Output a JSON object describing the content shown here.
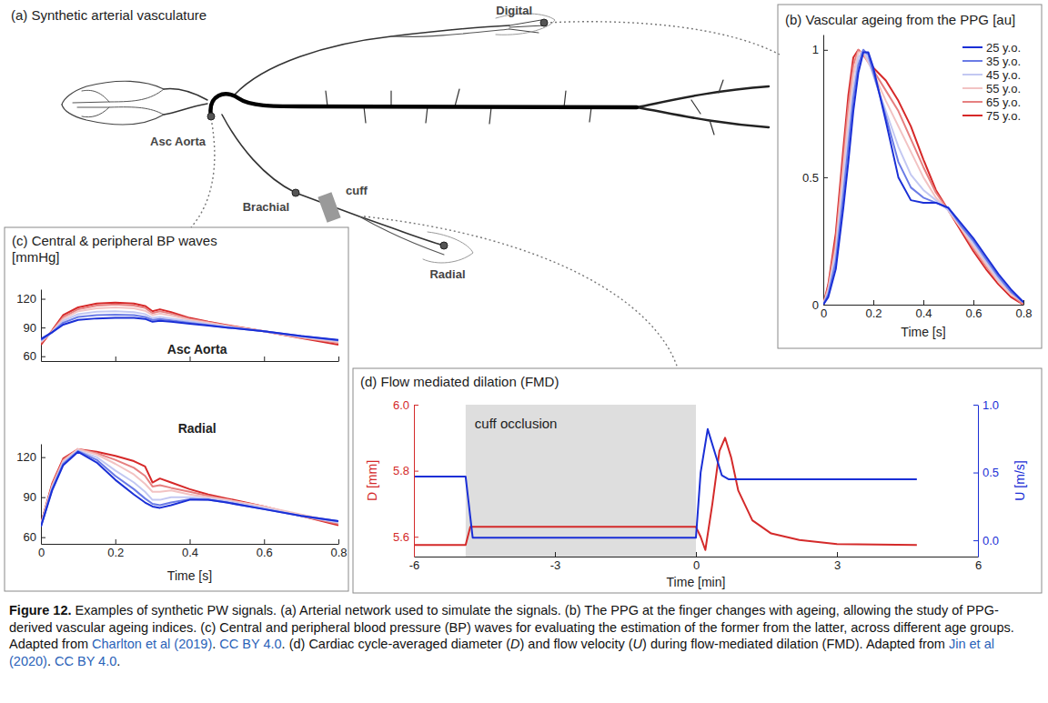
{
  "diagram": {
    "title": "(a) Synthetic arterial vasculature",
    "sites": [
      "Digital",
      "Asc Aorta",
      "Brachial",
      "Radial"
    ],
    "cuff": "cuff"
  },
  "chart_data": [
    {
      "type": "line",
      "title": "(b) Vascular ageing from the PPG [au]",
      "xlabel": "Time [s]",
      "x": [
        0,
        0.02,
        0.05,
        0.08,
        0.1,
        0.12,
        0.14,
        0.16,
        0.18,
        0.2,
        0.25,
        0.3,
        0.35,
        0.4,
        0.45,
        0.5,
        0.55,
        0.6,
        0.65,
        0.7,
        0.75,
        0.8
      ],
      "xlim": [
        0,
        0.8
      ],
      "xticks": [
        0,
        0.2,
        0.4,
        0.6,
        0.8
      ],
      "ylim": [
        0,
        1.06
      ],
      "yticks": [
        0,
        0.5,
        1
      ],
      "legend": "top-right",
      "series": [
        {
          "name": "25 y.o.",
          "color": "#1a2fd6",
          "values": [
            0,
            0.03,
            0.14,
            0.38,
            0.56,
            0.76,
            0.91,
            0.99,
            0.99,
            0.93,
            0.72,
            0.5,
            0.41,
            0.4,
            0.4,
            0.38,
            0.32,
            0.26,
            0.19,
            0.12,
            0.06,
            0.01
          ]
        },
        {
          "name": "35 y.o.",
          "color": "#6a7be6",
          "values": [
            0,
            0.04,
            0.17,
            0.43,
            0.62,
            0.81,
            0.94,
            1,
            0.98,
            0.91,
            0.74,
            0.56,
            0.46,
            0.42,
            0.4,
            0.38,
            0.31,
            0.25,
            0.18,
            0.11,
            0.05,
            0.01
          ]
        },
        {
          "name": "45 y.o.",
          "color": "#c3c8f2",
          "values": [
            0,
            0.05,
            0.2,
            0.48,
            0.67,
            0.85,
            0.97,
            1,
            0.96,
            0.9,
            0.76,
            0.62,
            0.51,
            0.45,
            0.41,
            0.37,
            0.31,
            0.24,
            0.17,
            0.1,
            0.05,
            0.01
          ]
        },
        {
          "name": "55 y.o.",
          "color": "#f2c3c3",
          "values": [
            0,
            0.06,
            0.22,
            0.53,
            0.73,
            0.9,
            0.99,
            0.99,
            0.95,
            0.91,
            0.8,
            0.7,
            0.6,
            0.5,
            0.42,
            0.37,
            0.3,
            0.23,
            0.16,
            0.09,
            0.04,
            0.01
          ]
        },
        {
          "name": "65 y.o.",
          "color": "#e68080",
          "values": [
            0,
            0.07,
            0.25,
            0.57,
            0.78,
            0.94,
            1,
            0.98,
            0.95,
            0.92,
            0.84,
            0.76,
            0.65,
            0.54,
            0.44,
            0.37,
            0.3,
            0.22,
            0.15,
            0.09,
            0.04,
            0
          ]
        },
        {
          "name": "75 y.o.",
          "color": "#d62828",
          "values": [
            0,
            0.08,
            0.28,
            0.61,
            0.82,
            0.97,
            1,
            0.98,
            0.96,
            0.93,
            0.88,
            0.8,
            0.7,
            0.57,
            0.45,
            0.37,
            0.29,
            0.21,
            0.14,
            0.08,
            0.03,
            0
          ]
        }
      ]
    },
    {
      "type": "line",
      "title": "(c) Central & peripheral BP waves [mmHg]",
      "annotations": [
        {
          "text": "Asc Aorta"
        }
      ],
      "tick_labels": "y",
      "x": [
        0,
        0.03,
        0.06,
        0.1,
        0.15,
        0.2,
        0.25,
        0.28,
        0.3,
        0.32,
        0.35,
        0.4,
        0.45,
        0.5,
        0.6,
        0.7,
        0.8
      ],
      "xlim": [
        0,
        0.8
      ],
      "xticks": [
        0,
        0.2,
        0.4,
        0.6,
        0.8
      ],
      "ylim": [
        55,
        130
      ],
      "yticks": [
        60,
        90,
        120
      ],
      "series": [
        {
          "color": "#1a2fd6",
          "values": [
            78,
            85,
            93,
            98,
            99.5,
            100,
            100,
            99,
            96,
            97,
            96,
            94,
            92,
            90,
            86,
            81,
            77
          ]
        },
        {
          "color": "#6a7be6",
          "values": [
            77,
            85,
            95,
            101,
            103,
            103.5,
            103,
            101,
            98,
            99,
            97.5,
            95,
            92.5,
            90,
            86,
            81,
            76.5
          ]
        },
        {
          "color": "#c3c8f2",
          "values": [
            76,
            85,
            97,
            104,
            106.5,
            107,
            106,
            104,
            100,
            101,
            99.5,
            96.5,
            93.5,
            91,
            86,
            80.5,
            76
          ]
        },
        {
          "color": "#f2c3c3",
          "values": [
            75,
            86,
            99,
            107,
            110,
            111,
            110,
            107.5,
            103,
            104.5,
            102.5,
            98,
            95,
            91.5,
            86,
            80,
            75
          ]
        },
        {
          "color": "#e68080",
          "values": [
            74,
            86,
            101,
            109,
            113,
            114,
            113,
            110.5,
            105,
            107,
            104.5,
            99,
            95.5,
            92,
            86,
            79.5,
            74
          ]
        },
        {
          "color": "#d62828",
          "values": [
            72,
            87,
            103,
            111,
            115,
            116,
            115,
            112.5,
            107,
            109,
            106,
            100,
            96,
            92.5,
            86,
            79,
            72
          ]
        }
      ]
    },
    {
      "type": "line",
      "annotations": [
        {
          "text": "Radial"
        }
      ],
      "xlabel": "Time [s]",
      "x": [
        0,
        0.03,
        0.06,
        0.1,
        0.15,
        0.2,
        0.25,
        0.28,
        0.3,
        0.32,
        0.35,
        0.4,
        0.45,
        0.5,
        0.6,
        0.7,
        0.8
      ],
      "xlim": [
        0,
        0.8
      ],
      "xticks": [
        0,
        0.2,
        0.4,
        0.6,
        0.8
      ],
      "ylim": [
        55,
        130
      ],
      "yticks": [
        60,
        90,
        120
      ],
      "series": [
        {
          "color": "#1a2fd6",
          "values": [
            68,
            95,
            114,
            124,
            116,
            103,
            92,
            86,
            83,
            82,
            84,
            88,
            88,
            86,
            81,
            76,
            72
          ]
        },
        {
          "color": "#6a7be6",
          "values": [
            68,
            96,
            115,
            124.5,
            118,
            106,
            96,
            89,
            85,
            84,
            86,
            88.5,
            88,
            86,
            81,
            76,
            72
          ]
        },
        {
          "color": "#c3c8f2",
          "values": [
            69,
            97,
            116,
            125,
            120,
            110,
            101,
            94,
            88,
            88,
            90,
            90,
            89,
            87,
            82,
            76,
            71
          ]
        },
        {
          "color": "#f2c3c3",
          "values": [
            69,
            98,
            117,
            126,
            122,
            115,
            107,
            100,
            94,
            94,
            95,
            92,
            90,
            88,
            83,
            77,
            71
          ]
        },
        {
          "color": "#e68080",
          "values": [
            70,
            99,
            118,
            126,
            123,
            118,
            112,
            106,
            98,
            99,
            97,
            94,
            91,
            88,
            83,
            76,
            70
          ]
        },
        {
          "color": "#d62828",
          "values": [
            70,
            100,
            119,
            126,
            124,
            121,
            117,
            113,
            101,
            104,
            101,
            96,
            92,
            89,
            83,
            76,
            69
          ]
        }
      ]
    },
    {
      "type": "line",
      "title": "(d) Flow mediated dilation (FMD)",
      "xlabel": "Time [min]",
      "ylabel": "D [mm]",
      "y2label": "U [m/s]",
      "xlim": [
        -6,
        6
      ],
      "xticks": [
        -6,
        -3,
        0,
        3,
        6
      ],
      "ylim": [
        5.54,
        6.0
      ],
      "yticks": [
        5.6,
        5.8,
        {
          "value": 6,
          "label": "6.0"
        }
      ],
      "y2lim": [
        -0.12,
        1.0
      ],
      "y2ticks": [
        {
          "value": 0,
          "label": "0.0"
        },
        0.5,
        {
          "value": 1,
          "label": "1.0"
        }
      ],
      "annotations": [
        {
          "text": "cuff occlusion",
          "x": [
            -4.9,
            0
          ]
        }
      ],
      "series": [
        {
          "color": "#d42a2a",
          "x": [
            -6,
            -4.9,
            -4.8,
            -2,
            0,
            0.1,
            0.2,
            0.35,
            0.5,
            0.62,
            0.75,
            0.9,
            1.2,
            1.6,
            2.2,
            3,
            4.7
          ],
          "values": [
            5.575,
            5.575,
            5.63,
            5.63,
            5.63,
            5.6,
            5.56,
            5.7,
            5.86,
            5.9,
            5.84,
            5.74,
            5.65,
            5.61,
            5.59,
            5.578,
            5.575
          ]
        },
        {
          "color": "#1a2fd6",
          "axis": "y2",
          "x": [
            -6,
            -4.9,
            -4.75,
            -2,
            0,
            0.1,
            0.25,
            0.4,
            0.55,
            0.7,
            1,
            3,
            4.7
          ],
          "values": [
            0.47,
            0.47,
            0.02,
            0.02,
            0.02,
            0.5,
            0.82,
            0.65,
            0.48,
            0.45,
            0.45,
            0.45,
            0.45
          ]
        }
      ]
    }
  ],
  "caption": [
    {
      "text": "Figure 12.",
      "kind": "bold"
    },
    {
      "text": " Examples of synthetic PW signals. (a) Arterial network used to simulate the signals. (b) The PPG at the finger changes with ageing, allowing the study of PPG-derived vascular ageing indices. (c) Central and peripheral blood pressure (BP) waves for evaluating the estimation of the former from the latter, across different age groups. Adapted from ",
      "kind": "text"
    },
    {
      "text": "Charlton et al (2019)",
      "kind": "link"
    },
    {
      "text": ". ",
      "kind": "text"
    },
    {
      "text": "CC BY 4.0",
      "kind": "link"
    },
    {
      "text": ". (d) Cardiac cycle-averaged diameter (",
      "kind": "text"
    },
    {
      "text": "D",
      "kind": "italic"
    },
    {
      "text": ") and flow velocity (",
      "kind": "text"
    },
    {
      "text": "U",
      "kind": "italic"
    },
    {
      "text": ") during flow-mediated dilation (FMD). Adapted from ",
      "kind": "text"
    },
    {
      "text": "Jin et al (2020)",
      "kind": "link"
    },
    {
      "text": ". ",
      "kind": "text"
    },
    {
      "text": "CC BY 4.0",
      "kind": "link"
    },
    {
      "text": ".",
      "kind": "text"
    }
  ]
}
